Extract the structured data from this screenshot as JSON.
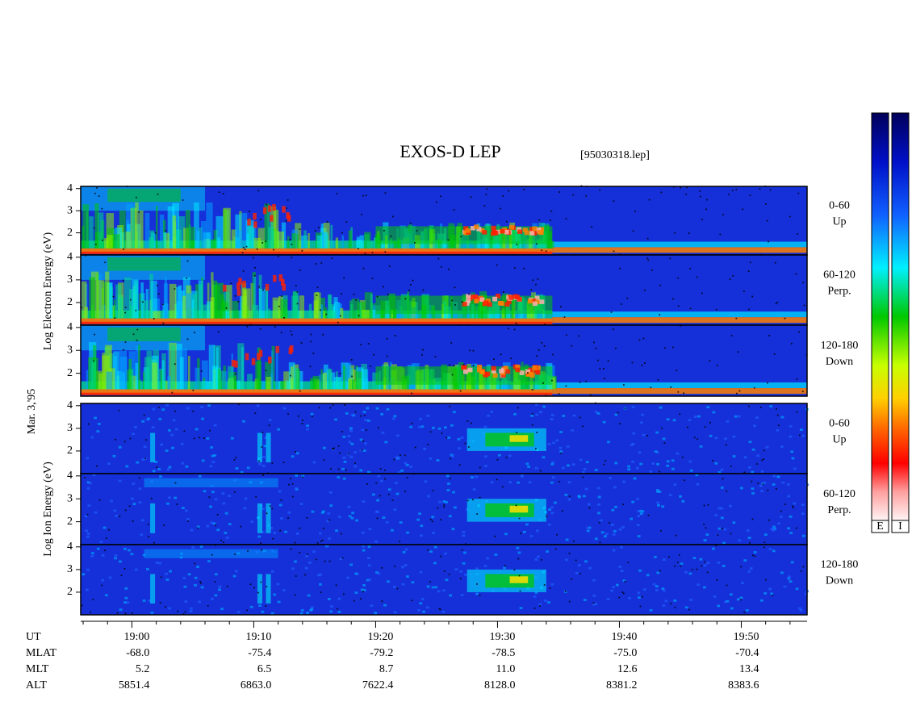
{
  "chart_data": {
    "type": "spectrogram",
    "title": "EXOS-D LEP",
    "subtitle": "[95030318.lep]",
    "date_label": "Mar. 3,'95",
    "xlim": [
      -4.2,
      55.4
    ],
    "xticks": [
      {
        "value": 0,
        "label": "19:00"
      },
      {
        "value": 10,
        "label": "19:10"
      },
      {
        "value": 20,
        "label": "19:20"
      },
      {
        "value": 30,
        "label": "19:30"
      },
      {
        "value": 40,
        "label": "19:40"
      },
      {
        "value": 50,
        "label": "19:50"
      }
    ],
    "xminorticks": [
      -4,
      -2,
      2,
      4,
      6,
      8,
      12,
      14,
      16,
      18,
      22,
      24,
      26,
      28,
      32,
      34,
      36,
      38,
      42,
      44,
      46,
      48,
      52,
      54
    ],
    "ylim": [
      1,
      4.1
    ],
    "yticks": [
      2,
      3,
      4
    ],
    "groups": [
      {
        "ylabel": "Log Electron Energy (eV)",
        "panels": [
          {
            "label": "0-60",
            "sublabel": "Up"
          },
          {
            "label": "60-120",
            "sublabel": "Perp."
          },
          {
            "label": "120-180",
            "sublabel": "Down"
          }
        ]
      },
      {
        "ylabel": "Log Ion Energy (eV)",
        "panels": [
          {
            "label": "0-60",
            "sublabel": "Up"
          },
          {
            "label": "60-120",
            "sublabel": "Perp."
          },
          {
            "label": "120-180",
            "sublabel": "Down"
          }
        ]
      }
    ],
    "ephemeris": [
      {
        "label": "UT"
      },
      {
        "label": "MLAT",
        "values": [
          "-68.0",
          "-75.4",
          "-79.2",
          "-78.5",
          "-75.0",
          "-70.4"
        ]
      },
      {
        "label": "MLT",
        "values": [
          "5.2",
          "6.5",
          "8.7",
          "11.0",
          "12.6",
          "13.4"
        ]
      },
      {
        "label": "ALT",
        "values": [
          "5851.4",
          "6863.0",
          "7622.4",
          "8128.0",
          "8381.2",
          "8383.6"
        ]
      }
    ],
    "colorbar_labels": [
      "E",
      "I"
    ]
  }
}
